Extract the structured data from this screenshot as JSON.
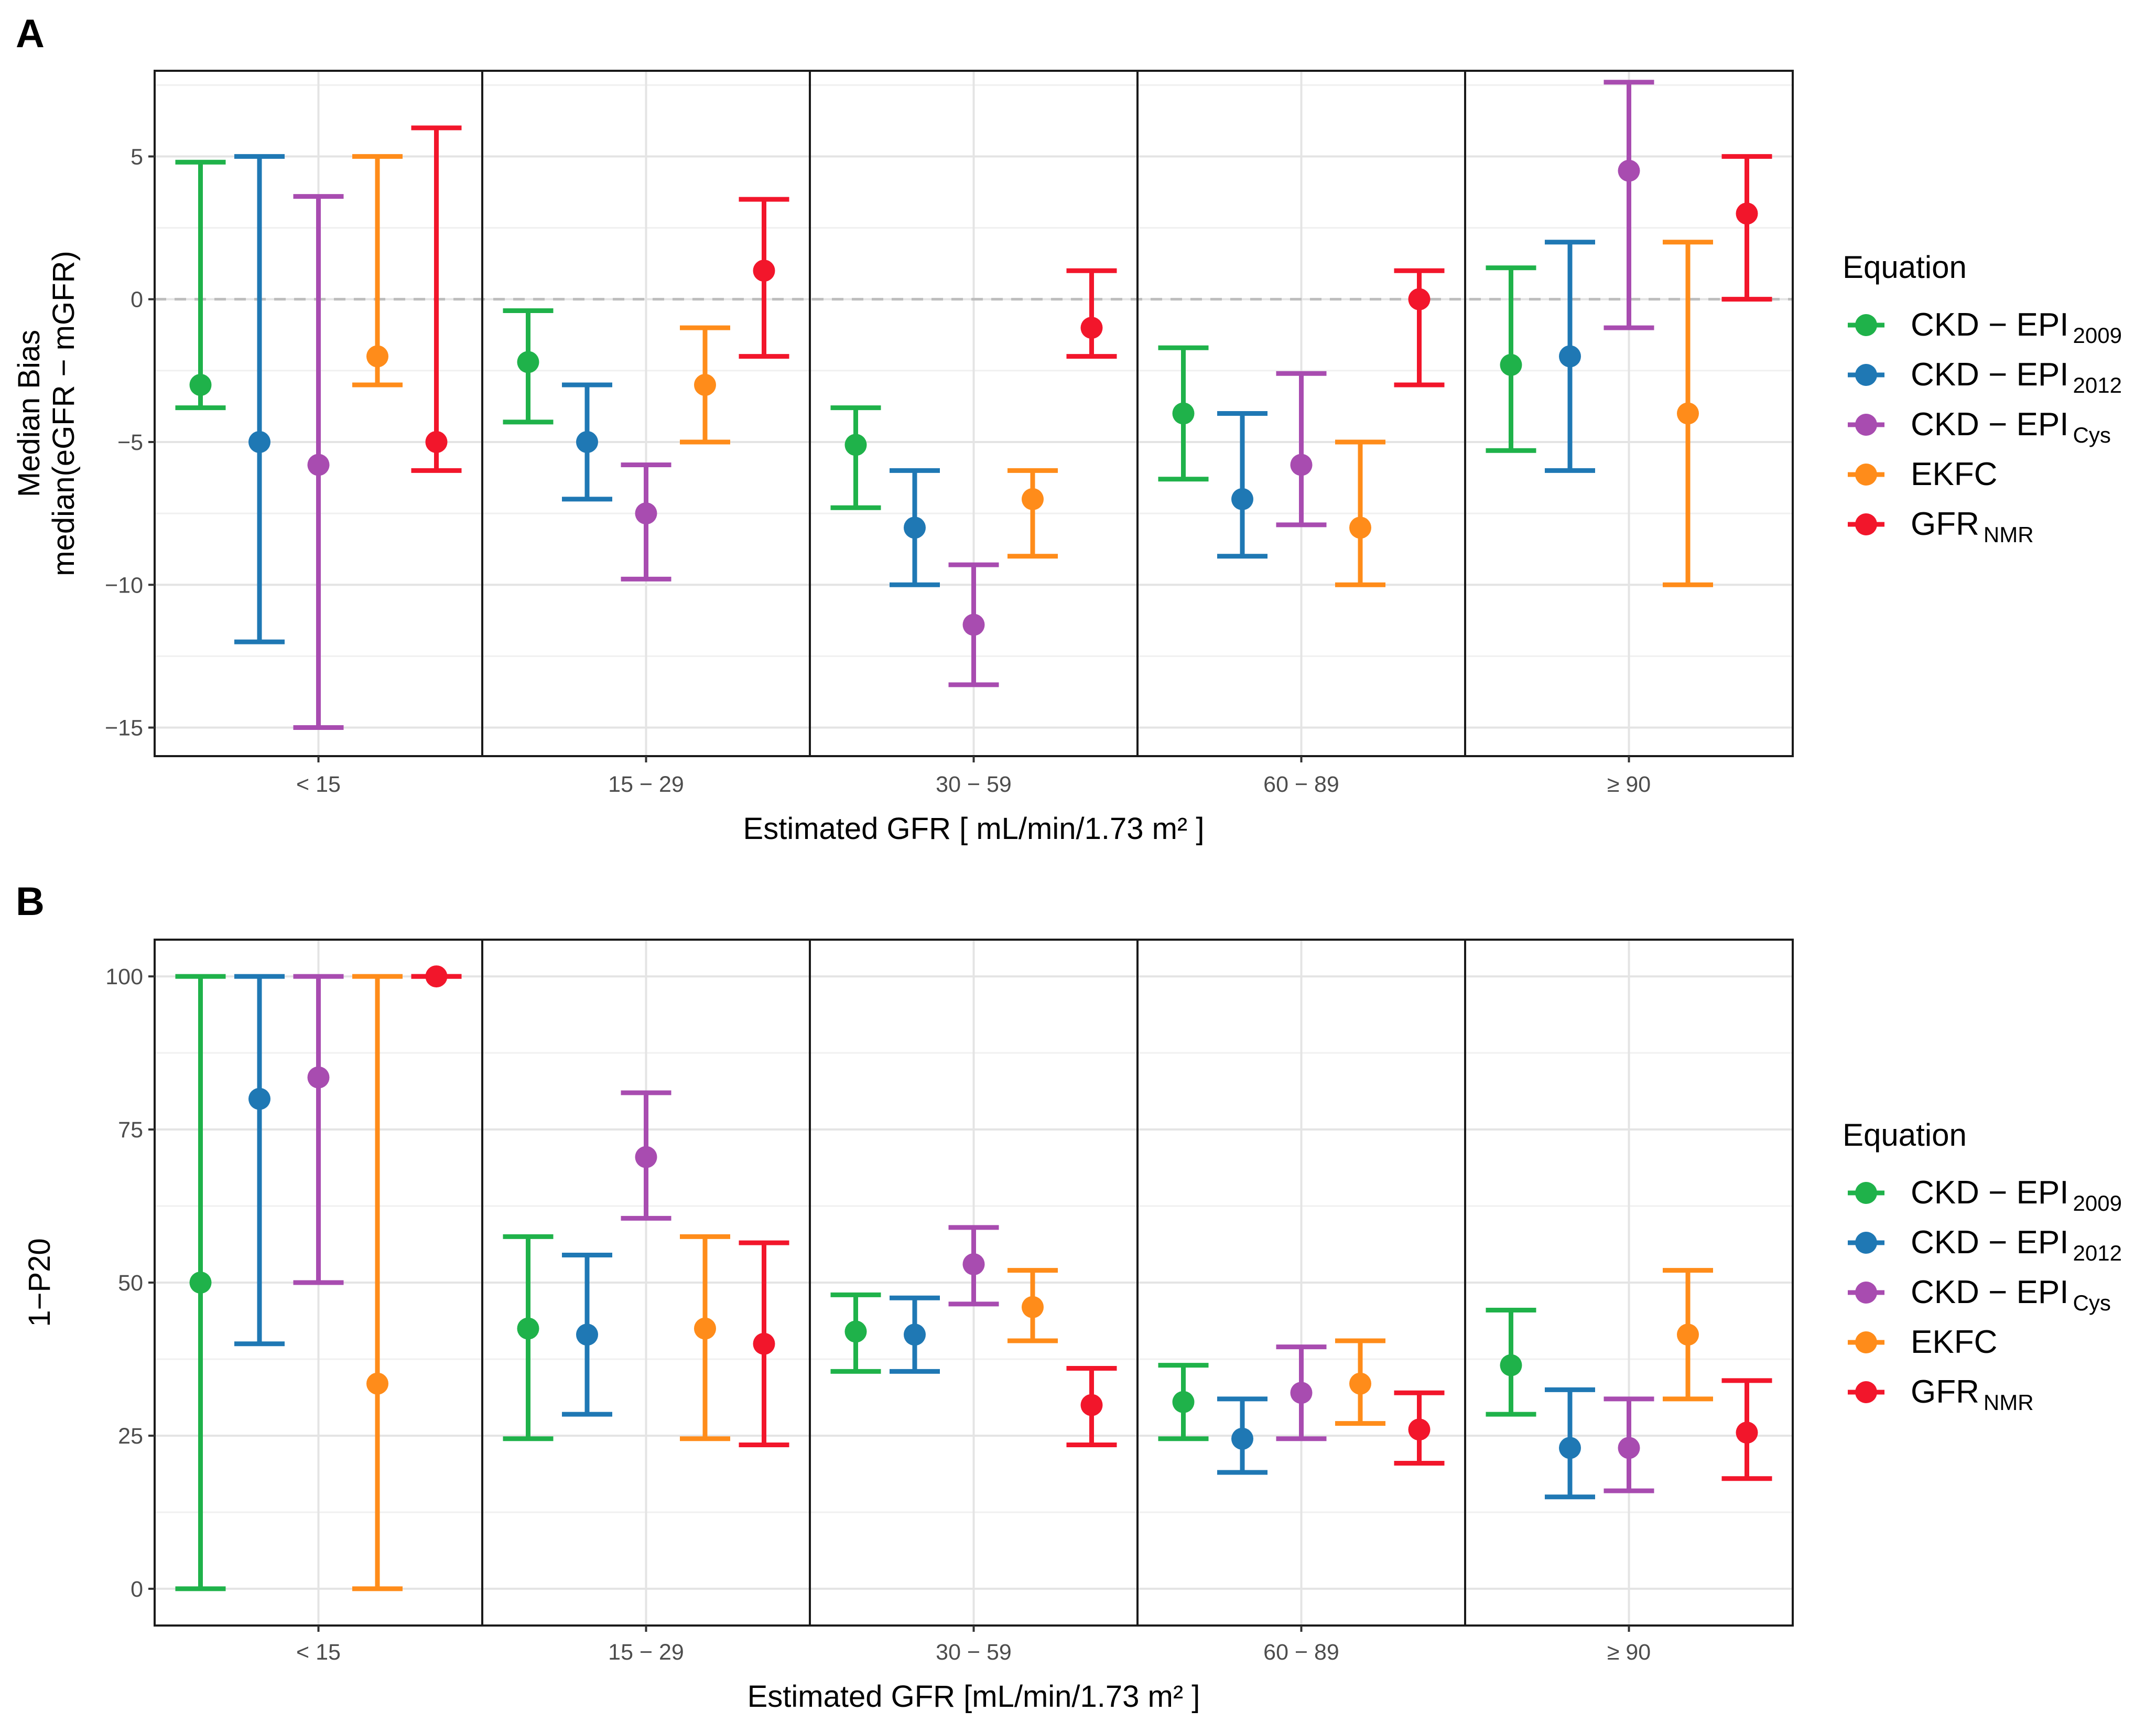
{
  "colors": {
    "CKD-EPI 2009": "#1FB24A",
    "CKD-EPI 2012": "#1F78B4",
    "CKD-EPI Cys": "#A84CB0",
    "EKFC": "#FF8C1A",
    "GFR NMR": "#F2162B"
  },
  "chart_data": [
    {
      "type": "errorbar",
      "panel_label": "A",
      "title": "",
      "ylabel_line1": "Median Bias",
      "ylabel_line2": "median(eGFR − mGFR)",
      "xlabel": "Estimated GFR [ mL/min/1.73 m² ]",
      "categories": [
        "< 15",
        "15 − 29",
        "30 − 59",
        "60 − 89",
        "≥ 90"
      ],
      "ylim": [
        -16,
        8
      ],
      "yticks": [
        -15,
        -10,
        -5,
        0,
        5
      ],
      "ytick_labels": [
        "−15",
        "−10",
        "−5",
        "0",
        "5"
      ],
      "reference_line": 0,
      "grid": true,
      "legend": {
        "title": "Equation",
        "position": "right",
        "entries": [
          {
            "main": "CKD − EPI",
            "sub": "2009",
            "color_key": "CKD-EPI 2009"
          },
          {
            "main": "CKD − EPI",
            "sub": "2012",
            "color_key": "CKD-EPI 2012"
          },
          {
            "main": "CKD − EPI",
            "sub": "Cys",
            "color_key": "CKD-EPI Cys"
          },
          {
            "main": "EKFC",
            "sub": "",
            "color_key": "EKFC"
          },
          {
            "main": "GFR",
            "sub": "NMR",
            "color_key": "GFR NMR"
          }
        ]
      },
      "series": [
        {
          "color_key": "CKD-EPI 2009",
          "values": [
            -3,
            -2.2,
            -5.1,
            -4,
            -2.3
          ],
          "lower": [
            -3.8,
            -4.3,
            -7.3,
            -6.3,
            -5.3
          ],
          "upper": [
            4.8,
            -0.4,
            -3.8,
            -1.7,
            1.1
          ]
        },
        {
          "color_key": "CKD-EPI 2012",
          "values": [
            -5,
            -5,
            -8,
            -7,
            -2
          ],
          "lower": [
            -12,
            -7,
            -10,
            -9,
            -6
          ],
          "upper": [
            5,
            -3,
            -6,
            -4,
            2
          ]
        },
        {
          "color_key": "CKD-EPI Cys",
          "values": [
            -5.8,
            -7.5,
            -11.4,
            -5.8,
            4.5
          ],
          "lower": [
            -15,
            -9.8,
            -13.5,
            -7.9,
            -1
          ],
          "upper": [
            3.6,
            -5.8,
            -9.3,
            -2.6,
            7.6
          ]
        },
        {
          "color_key": "EKFC",
          "values": [
            -2,
            -3,
            -7,
            -8,
            -4
          ],
          "lower": [
            -3,
            -5,
            -9,
            -10,
            -10
          ],
          "upper": [
            5,
            -1,
            -6,
            -5,
            2
          ]
        },
        {
          "color_key": "GFR NMR",
          "values": [
            -5,
            1,
            -1,
            0,
            3
          ],
          "lower": [
            -6,
            -2,
            -2,
            -3,
            0
          ],
          "upper": [
            6,
            3.5,
            1,
            1,
            5
          ]
        }
      ]
    },
    {
      "type": "errorbar",
      "panel_label": "B",
      "title": "",
      "ylabel_line1": "1−P20",
      "ylabel_line2": "",
      "xlabel": "Estimated GFR  [mL/min/1.73 m² ]",
      "categories": [
        "< 15",
        "15 − 29",
        "30 − 59",
        "60 − 89",
        "≥ 90"
      ],
      "ylim": [
        -6,
        106
      ],
      "yticks": [
        0,
        25,
        50,
        75,
        100
      ],
      "ytick_labels": [
        "0",
        "25",
        "50",
        "75",
        "100"
      ],
      "reference_line": null,
      "grid": true,
      "legend": {
        "title": "Equation",
        "position": "right",
        "entries": [
          {
            "main": "CKD − EPI",
            "sub": "2009",
            "color_key": "CKD-EPI 2009"
          },
          {
            "main": "CKD − EPI",
            "sub": "2012",
            "color_key": "CKD-EPI 2012"
          },
          {
            "main": "CKD − EPI",
            "sub": "Cys",
            "color_key": "CKD-EPI Cys"
          },
          {
            "main": "EKFC",
            "sub": "",
            "color_key": "EKFC"
          },
          {
            "main": "GFR",
            "sub": "NMR",
            "color_key": "GFR NMR"
          }
        ]
      },
      "series": [
        {
          "color_key": "CKD-EPI 2009",
          "values": [
            50,
            42.5,
            42,
            30.5,
            36.5
          ],
          "lower": [
            0,
            24.5,
            35.5,
            24.5,
            28.5
          ],
          "upper": [
            100,
            57.5,
            48,
            36.5,
            45.5
          ]
        },
        {
          "color_key": "CKD-EPI 2012",
          "values": [
            80,
            41.5,
            41.5,
            24.5,
            23
          ],
          "lower": [
            40,
            28.5,
            35.5,
            19,
            15
          ],
          "upper": [
            100,
            54.5,
            47.5,
            31,
            32.5
          ]
        },
        {
          "color_key": "CKD-EPI Cys",
          "values": [
            83.5,
            70.5,
            53,
            32,
            23
          ],
          "lower": [
            50,
            60.5,
            46.5,
            24.5,
            16
          ],
          "upper": [
            100,
            81,
            59,
            39.5,
            31
          ]
        },
        {
          "color_key": "EKFC",
          "values": [
            33.5,
            42.5,
            46,
            33.5,
            41.5
          ],
          "lower": [
            0,
            24.5,
            40.5,
            27,
            31
          ],
          "upper": [
            100,
            57.5,
            52,
            40.5,
            52
          ]
        },
        {
          "color_key": "GFR NMR",
          "values": [
            100,
            40,
            30,
            26,
            25.5
          ],
          "lower": [
            100,
            23.5,
            23.5,
            20.5,
            18
          ],
          "upper": [
            100,
            56.5,
            36,
            32,
            34
          ]
        }
      ]
    }
  ]
}
